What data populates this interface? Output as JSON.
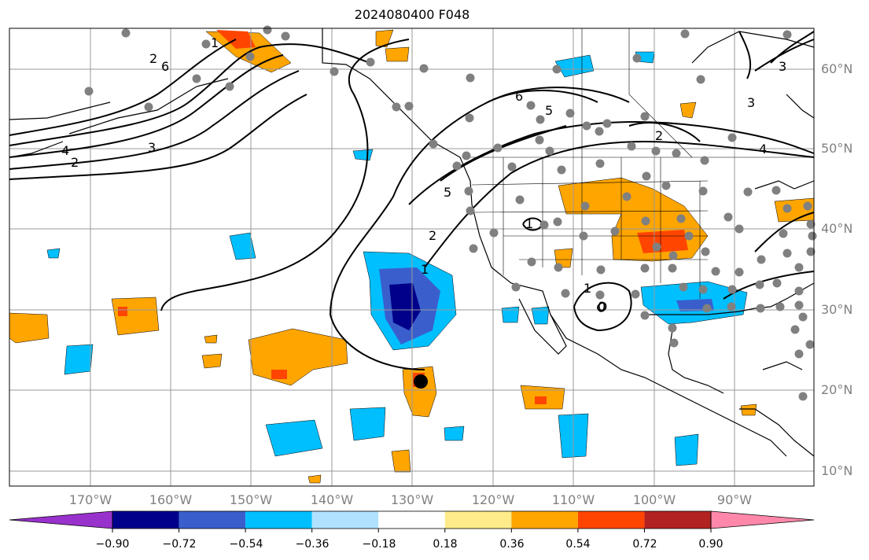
{
  "title": "2024080400 F048",
  "lat_labels": [
    "60°N",
    "50°N",
    "40°N",
    "30°N",
    "20°N",
    "10°N"
  ],
  "lon_labels": [
    "170°W",
    "160°W",
    "150°W",
    "140°W",
    "130°W",
    "120°W",
    "110°W",
    "100°W",
    "90°W"
  ],
  "contour_labels": [
    "1",
    "2",
    "3",
    "4",
    "5",
    "6",
    "0"
  ],
  "colorbar": {
    "ticks": [
      "−0.90",
      "−0.72",
      "−0.54",
      "−0.36",
      "−0.18",
      "0.18",
      "0.36",
      "0.54",
      "0.72",
      "0.90"
    ],
    "colors": [
      "#9932cc",
      "#00008b",
      "#3a5fcd",
      "#00bfff",
      "#b0e2ff",
      "#ffffff",
      "#ffeb8a",
      "#ffa500",
      "#ff4500",
      "#b22222",
      "#ff88aa"
    ]
  },
  "colors": {
    "ocean_land": "#ffffff",
    "grid": "#999999",
    "coast": "#000000",
    "station_dot": "#808080",
    "storm_center": "#000000"
  }
}
